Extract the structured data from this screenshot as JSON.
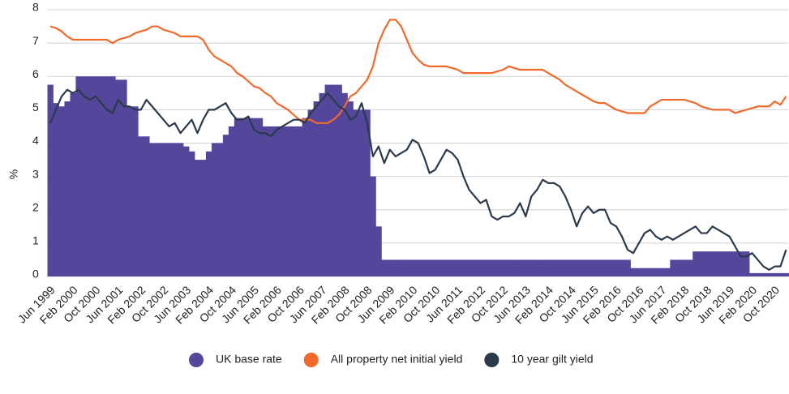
{
  "chart_data": {
    "type": "combo",
    "y_label": "%",
    "categories": [
      "Jun 1999",
      null,
      null,
      null,
      "Feb 2000",
      null,
      null,
      null,
      "Oct 2000",
      null,
      null,
      null,
      "Jun 2001",
      null,
      null,
      null,
      "Feb 2002",
      null,
      null,
      null,
      "Oct 2002",
      null,
      null,
      null,
      "Jun 2003",
      null,
      null,
      null,
      "Feb 2004",
      null,
      null,
      null,
      "Oct 2004",
      null,
      null,
      null,
      "Jun 2005",
      null,
      null,
      null,
      "Feb 2006",
      null,
      null,
      null,
      "Oct 2006",
      null,
      null,
      null,
      "Jun 2007",
      null,
      null,
      null,
      "Feb 2008",
      null,
      null,
      null,
      "Oct 2008",
      null,
      null,
      null,
      "Jun 2009",
      null,
      null,
      null,
      "Feb 2010",
      null,
      null,
      null,
      "Oct 2010",
      null,
      null,
      null,
      "Jun 2011",
      null,
      null,
      null,
      "Feb 2012",
      null,
      null,
      null,
      "Oct 2012",
      null,
      null,
      null,
      "Jun 2013",
      null,
      null,
      null,
      "Feb 2014",
      null,
      null,
      null,
      "Oct 2014",
      null,
      null,
      null,
      "Jun 2015",
      null,
      null,
      null,
      "Feb 2016",
      null,
      null,
      null,
      "Oct 2016",
      null,
      null,
      null,
      "Jun 2017",
      null,
      null,
      null,
      "Feb 2018",
      null,
      null,
      null,
      "Oct 2018",
      null,
      null,
      null,
      "Jun 2019",
      null,
      null,
      null,
      "Feb 2020",
      null,
      null,
      null,
      "Oct 2020",
      null,
      null
    ],
    "series": [
      {
        "name": "UK base rate",
        "kind": "bar",
        "color": "#54479b",
        "values": [
          5.75,
          5.2,
          5.1,
          5.25,
          5.5,
          6,
          6,
          6,
          6,
          6,
          6,
          6,
          5.9,
          5.9,
          5.1,
          5.1,
          4.2,
          4.2,
          4,
          4,
          4,
          4,
          4,
          4,
          3.9,
          3.75,
          3.5,
          3.5,
          3.75,
          4,
          4,
          4.25,
          4.5,
          4.75,
          4.75,
          4.75,
          4.75,
          4.75,
          4.5,
          4.5,
          4.5,
          4.5,
          4.5,
          4.5,
          4.5,
          4.75,
          5,
          5.25,
          5.5,
          5.75,
          5.75,
          5.75,
          5.5,
          5.25,
          5,
          5,
          5,
          3,
          1.5,
          0.5,
          0.5,
          0.5,
          0.5,
          0.5,
          0.5,
          0.5,
          0.5,
          0.5,
          0.5,
          0.5,
          0.5,
          0.5,
          0.5,
          0.5,
          0.5,
          0.5,
          0.5,
          0.5,
          0.5,
          0.5,
          0.5,
          0.5,
          0.5,
          0.5,
          0.5,
          0.5,
          0.5,
          0.5,
          0.5,
          0.5,
          0.5,
          0.5,
          0.5,
          0.5,
          0.5,
          0.5,
          0.5,
          0.5,
          0.5,
          0.5,
          0.5,
          0.5,
          0.5,
          0.25,
          0.25,
          0.25,
          0.25,
          0.25,
          0.25,
          0.25,
          0.5,
          0.5,
          0.5,
          0.5,
          0.75,
          0.75,
          0.75,
          0.75,
          0.75,
          0.75,
          0.75,
          0.75,
          0.75,
          0.75,
          0.1,
          0.1,
          0.1,
          0.1,
          0.1,
          0.1,
          0.1
        ]
      },
      {
        "name": "All property net initial yield",
        "kind": "line",
        "color": "#f26a2b",
        "values": [
          7.5,
          7.45,
          7.35,
          7.2,
          7.1,
          7.1,
          7.1,
          7.1,
          7.1,
          7.1,
          7.1,
          7,
          7.1,
          7.15,
          7.2,
          7.3,
          7.35,
          7.4,
          7.5,
          7.5,
          7.4,
          7.35,
          7.3,
          7.2,
          7.2,
          7.2,
          7.2,
          7.1,
          6.8,
          6.6,
          6.5,
          6.4,
          6.3,
          6.1,
          6,
          5.85,
          5.7,
          5.65,
          5.5,
          5.4,
          5.2,
          5.1,
          5,
          4.85,
          4.7,
          4.7,
          4.7,
          4.6,
          4.6,
          4.6,
          4.7,
          4.85,
          5.1,
          5.4,
          5.5,
          5.7,
          5.9,
          6.3,
          7,
          7.4,
          7.7,
          7.7,
          7.5,
          7.1,
          6.7,
          6.5,
          6.35,
          6.3,
          6.3,
          6.3,
          6.3,
          6.25,
          6.2,
          6.1,
          6.1,
          6.1,
          6.1,
          6.1,
          6.1,
          6.15,
          6.2,
          6.3,
          6.25,
          6.2,
          6.2,
          6.2,
          6.2,
          6.2,
          6.1,
          6,
          5.9,
          5.75,
          5.65,
          5.55,
          5.45,
          5.35,
          5.25,
          5.2,
          5.2,
          5.1,
          5,
          4.95,
          4.9,
          4.9,
          4.9,
          4.9,
          5.1,
          5.2,
          5.3,
          5.3,
          5.3,
          5.3,
          5.3,
          5.25,
          5.2,
          5.1,
          5.05,
          5,
          5,
          5,
          5,
          4.9,
          4.95,
          5,
          5.05,
          5.1,
          5.1,
          5.1,
          5.25,
          5.15,
          5.4
        ]
      },
      {
        "name": "10 year gilt yield",
        "kind": "line",
        "color": "#2b3a4b",
        "values": [
          4.6,
          5,
          5.4,
          5.6,
          5.5,
          5.6,
          5.4,
          5.3,
          5.4,
          5.2,
          5,
          4.9,
          5.3,
          5.1,
          5.1,
          5,
          5,
          5.3,
          5.1,
          4.9,
          4.7,
          4.5,
          4.6,
          4.3,
          4.5,
          4.7,
          4.3,
          4.7,
          5,
          5,
          5.1,
          5.2,
          4.9,
          4.7,
          4.7,
          4.8,
          4.4,
          4.3,
          4.3,
          4.2,
          4.4,
          4.5,
          4.6,
          4.7,
          4.7,
          4.6,
          4.9,
          5.1,
          5.3,
          5.5,
          5.3,
          5.1,
          5,
          4.7,
          4.8,
          5.2,
          4.6,
          3.6,
          3.9,
          3.4,
          3.8,
          3.6,
          3.7,
          3.8,
          4.1,
          4,
          3.6,
          3.1,
          3.2,
          3.5,
          3.8,
          3.7,
          3.5,
          3,
          2.6,
          2.4,
          2.2,
          2.3,
          1.8,
          1.7,
          1.8,
          1.8,
          1.9,
          2.2,
          1.8,
          2.4,
          2.6,
          2.9,
          2.8,
          2.8,
          2.7,
          2.4,
          2,
          1.5,
          1.9,
          2.1,
          1.9,
          2,
          2,
          1.6,
          1.5,
          1.2,
          0.8,
          0.7,
          1,
          1.3,
          1.4,
          1.2,
          1.1,
          1.2,
          1.1,
          1.2,
          1.3,
          1.4,
          1.5,
          1.3,
          1.3,
          1.5,
          1.4,
          1.3,
          1.2,
          0.9,
          0.6,
          0.6,
          0.7,
          0.5,
          0.3,
          0.2,
          0.3,
          0.3,
          0.8
        ]
      }
    ],
    "ylim": [
      0,
      8
    ],
    "yticks": [
      0,
      1,
      2,
      3,
      4,
      5,
      6,
      7,
      8
    ],
    "grid": true,
    "legend": "bottom"
  }
}
